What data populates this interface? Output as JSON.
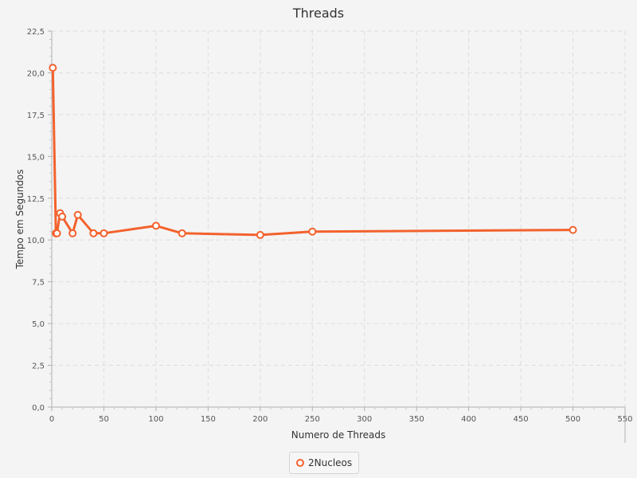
{
  "chart_data": {
    "type": "line",
    "title": "Threads",
    "xlabel": "Numero de Threads",
    "ylabel": "Tempo em Segundos",
    "xlim": [
      0,
      550
    ],
    "ylim": [
      0,
      22.5
    ],
    "x_ticks": [
      "0",
      "50",
      "100",
      "150",
      "200",
      "250",
      "300",
      "350",
      "400",
      "450",
      "500",
      "550"
    ],
    "y_ticks": [
      "0,0",
      "2,5",
      "5,0",
      "7,5",
      "10,0",
      "12,5",
      "15,0",
      "17,5",
      "20,0",
      "22,5"
    ],
    "grid": true,
    "legend_position": "bottom",
    "series": [
      {
        "name": "2Nucleos",
        "color": "#f3622d",
        "x": [
          1,
          4,
          5,
          8,
          10,
          20,
          25,
          40,
          50,
          100,
          125,
          200,
          250,
          500
        ],
        "y": [
          20.3,
          10.4,
          10.4,
          11.6,
          11.4,
          10.4,
          11.5,
          10.4,
          10.4,
          10.85,
          10.4,
          10.3,
          10.5,
          10.6
        ]
      }
    ]
  }
}
